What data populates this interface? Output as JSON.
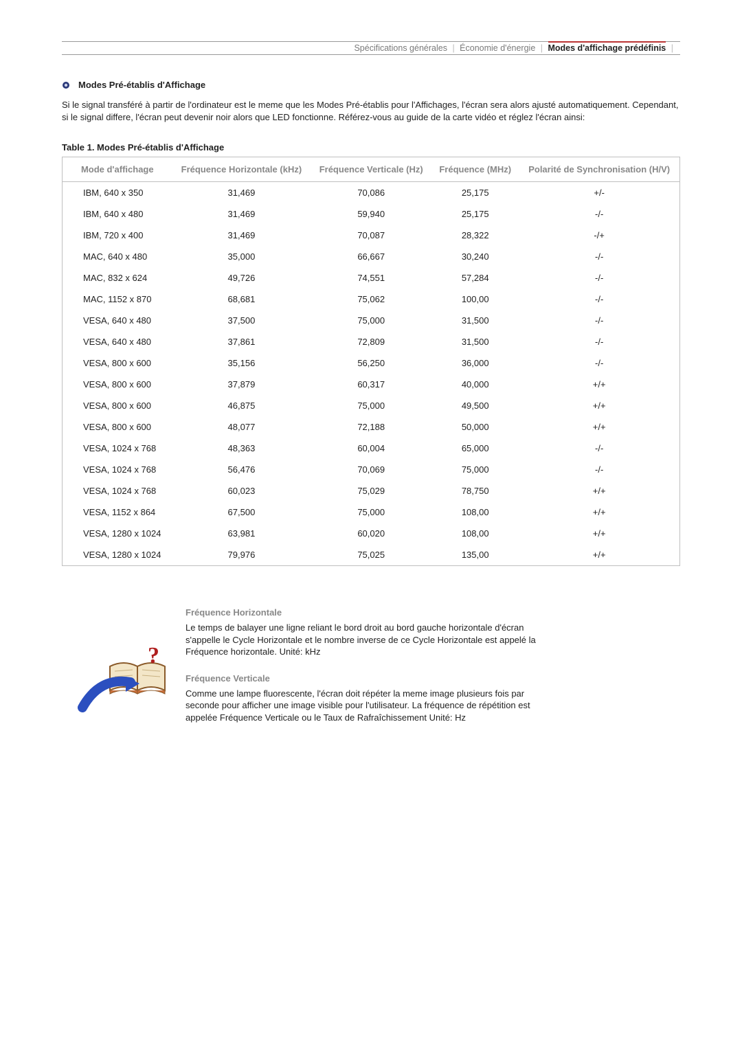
{
  "nav": {
    "items": [
      {
        "label": "Spécifications générales",
        "active": false
      },
      {
        "label": "Économie d'énergie",
        "active": false
      },
      {
        "label": "Modes d'affichage prédéfinis",
        "active": true
      }
    ],
    "separator": "|",
    "active_border_color": "#b33333",
    "text_color_inactive": "#7a7a7a",
    "text_color_active": "#222222",
    "border_color": "#999999"
  },
  "section": {
    "title": "Modes Pré-établis d'Affichage",
    "bullet_color_outer": "#2b3a7a",
    "bullet_color_inner": "#9aa0c0"
  },
  "intro": "Si le signal transféré à partir de l'ordinateur est le meme que les Modes Pré-établis pour l'Affichages, l'écran sera alors ajusté automatiquement. Cependant, si le signal differe, l'écran peut devenir noir alors que LED fonctionne. Référez-vous au guide de la carte vidéo et réglez l'écran ainsi:",
  "table": {
    "caption": "Table 1. Modes Pré-établis d'Affichage",
    "border_color": "#bfbfbf",
    "header_text_color": "#888888",
    "columns": [
      "Mode d'affichage",
      "Fréquence Horizontale (kHz)",
      "Fréquence Verticale (Hz)",
      "Fréquence (MHz)",
      "Polarité de Synchronisation (H/V)"
    ],
    "rows": [
      [
        "IBM, 640 x 350",
        "31,469",
        "70,086",
        "25,175",
        "+/-"
      ],
      [
        "IBM, 640 x 480",
        "31,469",
        "59,940",
        "25,175",
        "-/-"
      ],
      [
        "IBM, 720 x 400",
        "31,469",
        "70,087",
        "28,322",
        "-/+"
      ],
      [
        "MAC, 640 x 480",
        "35,000",
        "66,667",
        "30,240",
        "-/-"
      ],
      [
        "MAC, 832 x 624",
        "49,726",
        "74,551",
        "57,284",
        "-/-"
      ],
      [
        "MAC, 1152 x 870",
        "68,681",
        "75,062",
        "100,00",
        "-/-"
      ],
      [
        "VESA, 640 x 480",
        "37,500",
        "75,000",
        "31,500",
        "-/-"
      ],
      [
        "VESA, 640 x 480",
        "37,861",
        "72,809",
        "31,500",
        "-/-"
      ],
      [
        "VESA, 800 x 600",
        "35,156",
        "56,250",
        "36,000",
        "-/-"
      ],
      [
        "VESA, 800 x 600",
        "37,879",
        "60,317",
        "40,000",
        "+/+"
      ],
      [
        "VESA, 800 x 600",
        "46,875",
        "75,000",
        "49,500",
        "+/+"
      ],
      [
        "VESA, 800 x 600",
        "48,077",
        "72,188",
        "50,000",
        "+/+"
      ],
      [
        "VESA, 1024 x 768",
        "48,363",
        "60,004",
        "65,000",
        "-/-"
      ],
      [
        "VESA, 1024 x 768",
        "56,476",
        "70,069",
        "75,000",
        "-/-"
      ],
      [
        "VESA, 1024 x 768",
        "60,023",
        "75,029",
        "78,750",
        "+/+"
      ],
      [
        "VESA, 1152 x 864",
        "67,500",
        "75,000",
        "108,00",
        "+/+"
      ],
      [
        "VESA, 1280 x 1024",
        "63,981",
        "60,020",
        "108,00",
        "+/+"
      ],
      [
        "VESA, 1280 x 1024",
        "79,976",
        "75,025",
        "135,00",
        "+/+"
      ]
    ]
  },
  "definitions": {
    "icon": {
      "arrow_color": "#2b4fbf",
      "book_color": "#c86e3a",
      "question_color": "#b02020",
      "outline_color": "#222222"
    },
    "items": [
      {
        "title": "Fréquence Horizontale",
        "body": "Le temps de balayer une ligne reliant le bord droit au bord gauche horizontale d'écran s'appelle le Cycle Horizontale et le nombre inverse de ce Cycle Horizontale est appelé la Fréquence horizontale. Unité: kHz"
      },
      {
        "title": "Fréquence Verticale",
        "body": "Comme une lampe fluorescente, l'écran doit répéter la meme image plusieurs fois par seconde pour afficher une image visible pour l'utilisateur. La fréquence de répétition est appelée Fréquence Verticale ou le Taux de Rafraîchissement Unité: Hz"
      }
    ]
  }
}
